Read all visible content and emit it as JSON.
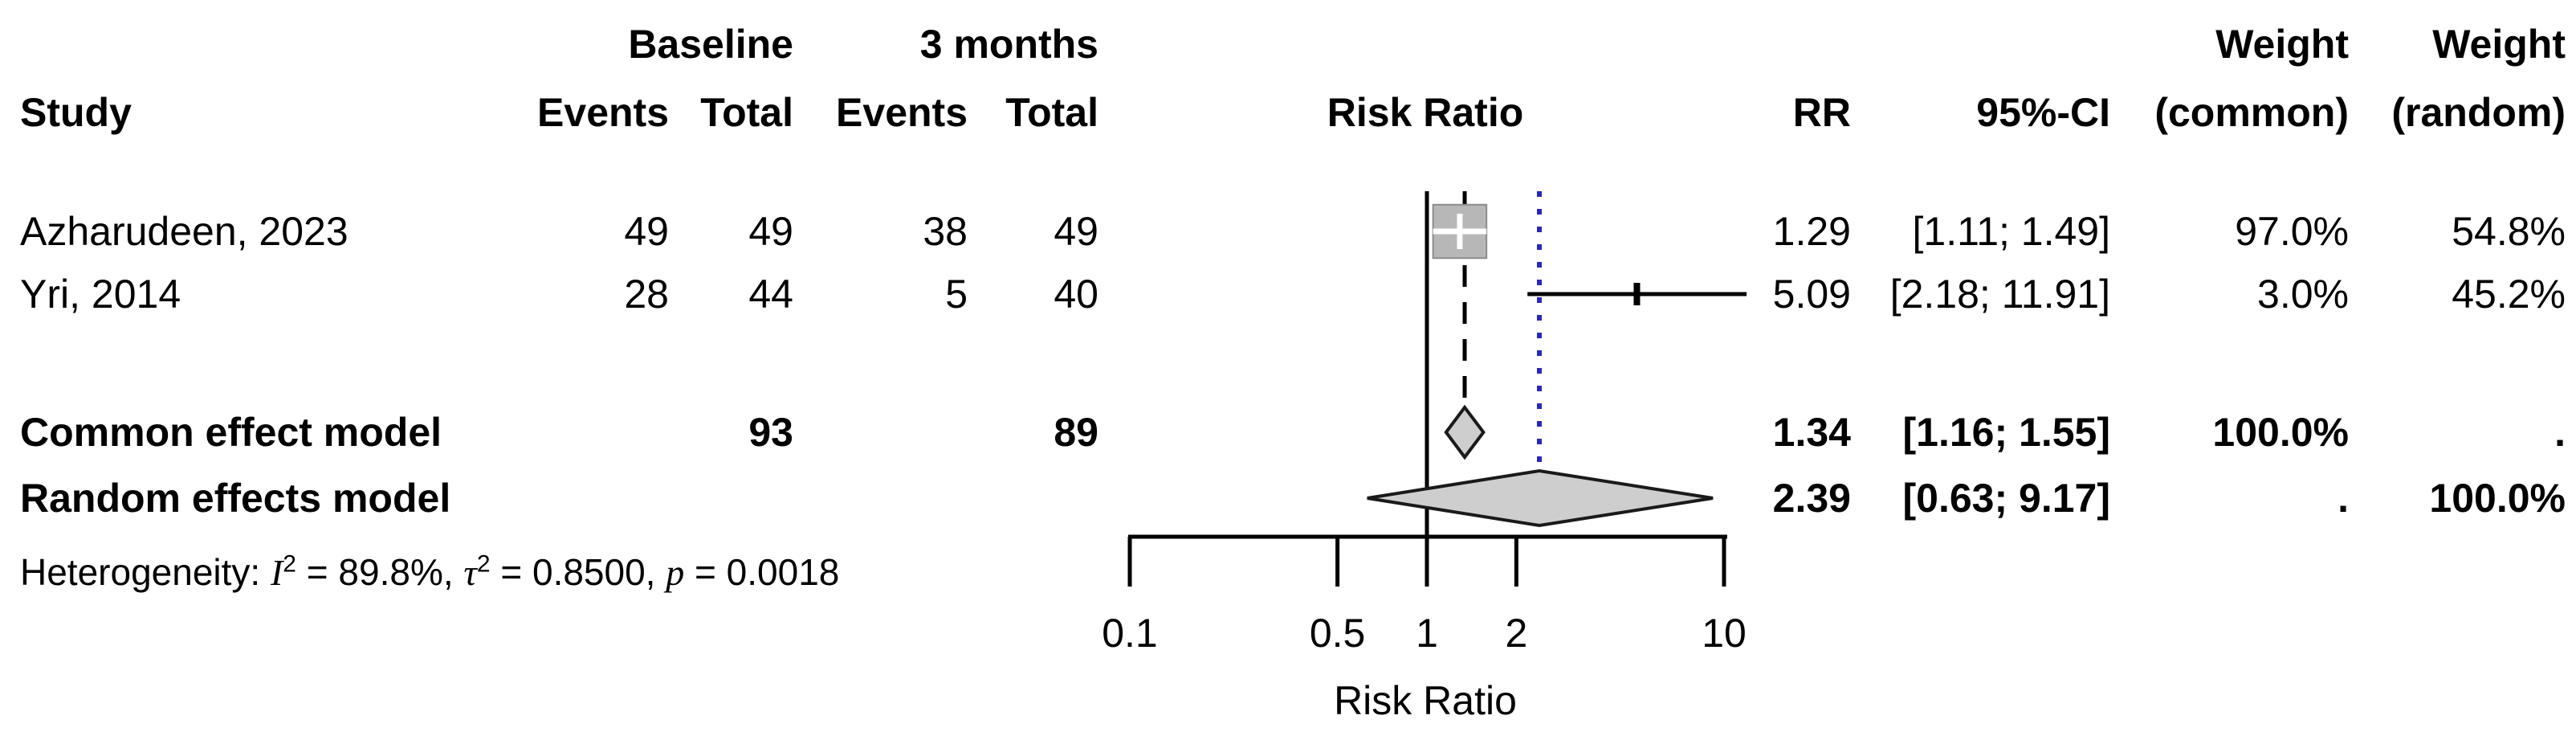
{
  "table": {
    "header_top": {
      "baseline": "Baseline",
      "three_months": "3 months",
      "weight_common_top": "Weight",
      "weight_random_top": "Weight"
    },
    "header": {
      "study": "Study",
      "events_baseline": "Events",
      "total_baseline": "Total",
      "events_3m": "Events",
      "total_3m": "Total",
      "risk_ratio": "Risk Ratio",
      "rr": "RR",
      "ci": "95%-CI",
      "weight_common": "(common)",
      "weight_random": "(random)"
    },
    "studies": [
      {
        "label": "Azharudeen, 2023",
        "events_baseline": "49",
        "total_baseline": "49",
        "events_3m": "38",
        "total_3m": "49",
        "rr": "1.29",
        "ci": "[1.11; 1.49]",
        "weight_common": "97.0%",
        "weight_random": "54.8%"
      },
      {
        "label": "Yri, 2014",
        "events_baseline": "28",
        "total_baseline": "44",
        "events_3m": "5",
        "total_3m": "40",
        "rr": "5.09",
        "ci": "[2.18; 11.91]",
        "weight_common": "3.0%",
        "weight_random": "45.2%"
      }
    ],
    "models": [
      {
        "label": "Common effect model",
        "total_baseline": "93",
        "total_3m": "89",
        "rr": "1.34",
        "ci": "[1.16; 1.55]",
        "weight_common": "100.0%",
        "weight_random": "."
      },
      {
        "label": "Random effects model",
        "total_baseline": "",
        "total_3m": "",
        "rr": "2.39",
        "ci": "[0.63; 9.17]",
        "weight_common": ".",
        "weight_random": "100.0%"
      }
    ],
    "heterogeneity": {
      "prefix": "Heterogeneity: ",
      "i": "I",
      "i_sup": "2",
      "seg1": " = 89.8%, ",
      "tau": "τ",
      "tau_sup": "2",
      "seg2": " = 0.8500, ",
      "p": "p",
      "seg3": " = 0.0018"
    }
  },
  "chart_data": {
    "type": "forest",
    "x_scale": "log10",
    "title": "",
    "xlabel": "Risk Ratio",
    "axis": {
      "range": [
        0.1,
        10
      ],
      "ticks": [
        0.1,
        0.5,
        1,
        2,
        10
      ],
      "tick_labels": [
        "0.1",
        "0.5",
        "1",
        "2",
        "10"
      ]
    },
    "reference_line": 1,
    "common_effect_line": 1.34,
    "random_effect_line": 2.39,
    "studies": [
      {
        "name": "Azharudeen, 2023",
        "rr": 1.29,
        "ci_low": 1.11,
        "ci_high": 1.49,
        "weight_common_pct": 97.0,
        "weight_random_pct": 54.8
      },
      {
        "name": "Yri, 2014",
        "rr": 5.09,
        "ci_low": 2.18,
        "ci_high": 11.91,
        "weight_common_pct": 3.0,
        "weight_random_pct": 45.2
      }
    ],
    "models": [
      {
        "name": "Common effect model",
        "rr": 1.34,
        "ci_low": 1.16,
        "ci_high": 1.55
      },
      {
        "name": "Random effects model",
        "rr": 2.39,
        "ci_low": 0.63,
        "ci_high": 9.17
      }
    ],
    "heterogeneity": {
      "i_squared_pct": 89.8,
      "tau_squared": 0.85,
      "p_value": 0.0018
    },
    "colors": {
      "square_fill": "#b7b7b7",
      "square_border": "#8c8c8c",
      "diamond_fill": "#cecece",
      "diamond_border": "#1a1a1a",
      "random_line": "#2a2ab0",
      "line": "#000000"
    }
  }
}
